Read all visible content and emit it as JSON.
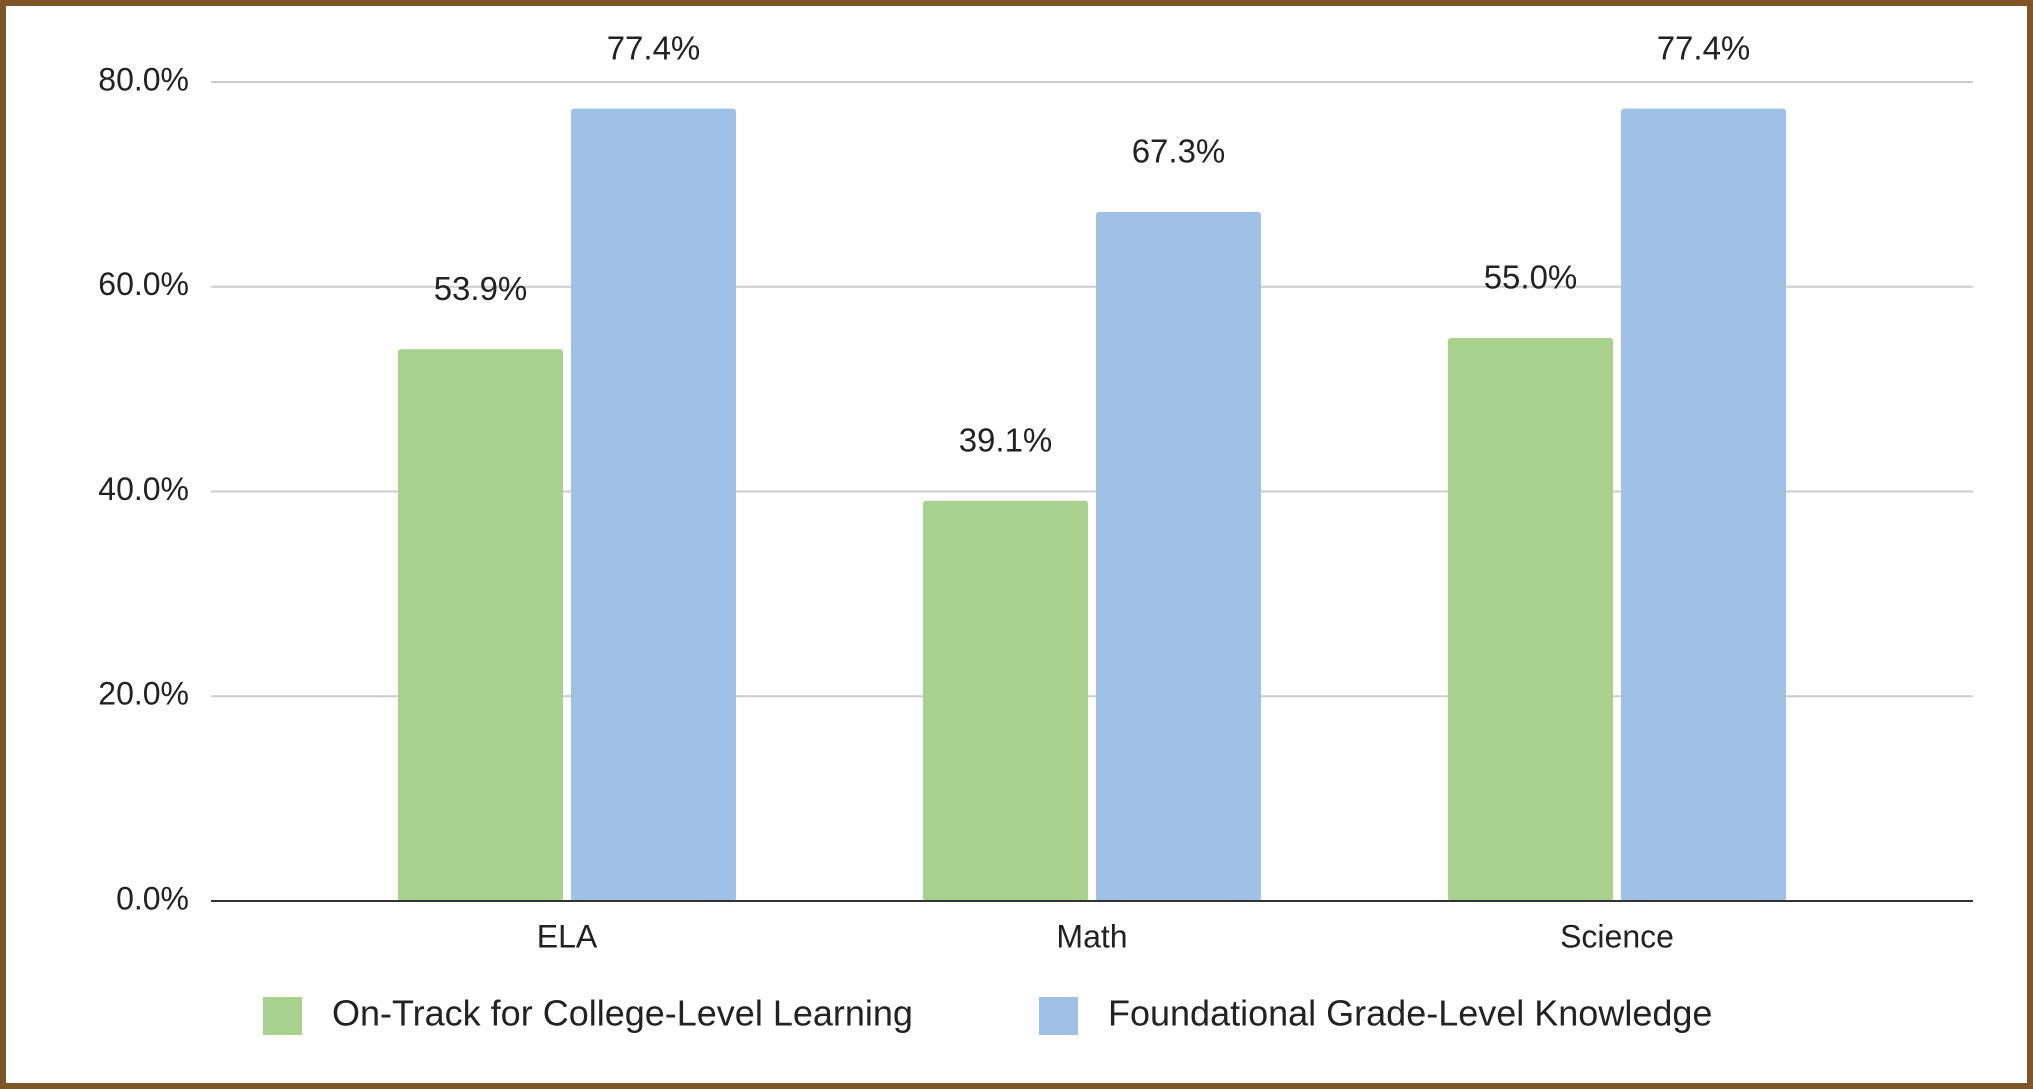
{
  "chart_data": {
    "type": "bar",
    "categories": [
      "ELA",
      "Math",
      "Science"
    ],
    "series": [
      {
        "name": "On-Track for College-Level Learning",
        "color": "#a8d18d",
        "values": [
          53.9,
          39.1,
          55.0
        ],
        "value_labels": [
          "53.9%",
          "39.1%",
          "55.0%"
        ]
      },
      {
        "name": "Foundational Grade-Level Knowledge",
        "color": "#9fc1e6",
        "values": [
          77.4,
          67.3,
          77.4
        ],
        "value_labels": [
          "77.4%",
          "67.3%",
          "77.4%"
        ]
      }
    ],
    "ylim": [
      0,
      80
    ],
    "yticks": [
      {
        "value": 0,
        "label": "0.0%"
      },
      {
        "value": 20,
        "label": "20.0%"
      },
      {
        "value": 40,
        "label": "40.0%"
      },
      {
        "value": 60,
        "label": "60.0%"
      },
      {
        "value": 80,
        "label": "80.0%"
      }
    ],
    "grid": true,
    "legend": "bottom"
  }
}
